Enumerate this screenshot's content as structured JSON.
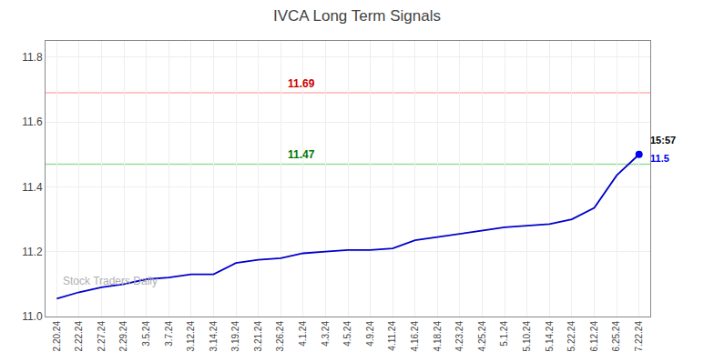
{
  "chart_data": {
    "type": "line",
    "title": "IVCA Long Term Signals",
    "categories": [
      "2.20.24",
      "2.22.24",
      "2.27.24",
      "2.29.24",
      "3.5.24",
      "3.7.24",
      "3.12.24",
      "3.14.24",
      "3.19.24",
      "3.21.24",
      "3.26.24",
      "4.1.24",
      "4.3.24",
      "4.5.24",
      "4.9.24",
      "4.11.24",
      "4.16.24",
      "4.18.24",
      "4.23.24",
      "4.25.24",
      "5.1.24",
      "5.10.24",
      "5.14.24",
      "5.22.24",
      "6.12.24",
      "6.25.24",
      "7.22.24"
    ],
    "series": [
      {
        "values": [
          11.055,
          11.075,
          11.09,
          11.1,
          11.115,
          11.12,
          11.13,
          11.13,
          11.165,
          11.175,
          11.18,
          11.195,
          11.2,
          11.205,
          11.205,
          11.21,
          11.235,
          11.245,
          11.255,
          11.265,
          11.275,
          11.28,
          11.285,
          11.3,
          11.335,
          11.435,
          11.5
        ],
        "color": "#0000cc",
        "last_point_color": "#0000ee"
      }
    ],
    "hlines": [
      {
        "value": 11.69,
        "color": "#ffb3b3",
        "label": "11.69",
        "label_color": "#cc0000"
      },
      {
        "value": 11.47,
        "color": "#99dd99",
        "label": "11.47",
        "label_color": "#007700"
      }
    ],
    "last_annotations": [
      {
        "text": "15:57",
        "color": "#000000"
      },
      {
        "text": "11.5",
        "color": "#0000ee"
      }
    ],
    "watermark": {
      "text": "Stock Traders Daily",
      "color": "#b0b0b0"
    },
    "ylim": [
      11.0,
      11.85
    ],
    "yticks": [
      {
        "value": 11.0,
        "label": "11.0"
      },
      11.2,
      11.4,
      11.6,
      11.8
    ],
    "grid": true
  }
}
